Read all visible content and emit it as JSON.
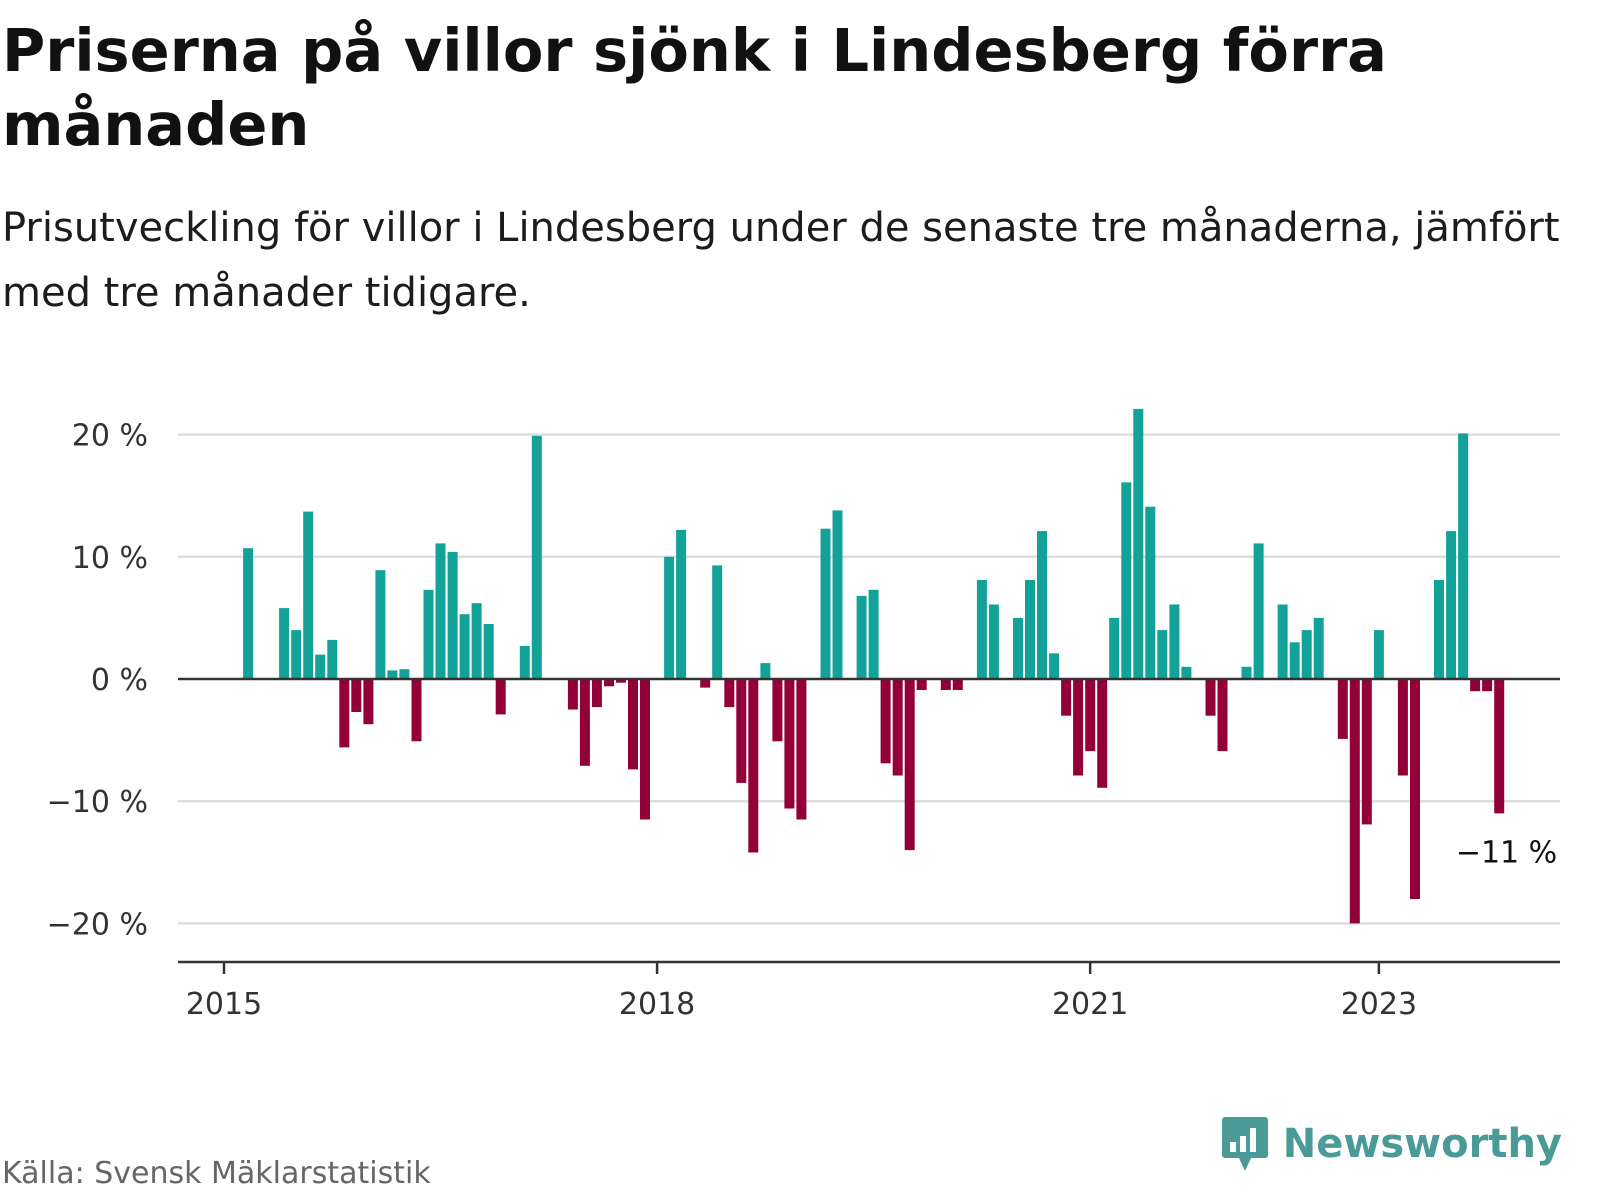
{
  "title": "Priserna på villor sjönk i Lindesberg förra månaden",
  "subtitle": "Prisutveckling för villor i Lindesberg under de senaste tre månaderna, jämfört med tre månader tidigare.",
  "source": "Källa: Svensk Mäklarstatistik",
  "brand": "Newsworthy",
  "colors": {
    "positive": "#13a298",
    "negative": "#930038",
    "grid": "#dddddd",
    "axis": "#333333",
    "brand": "#4a9a97"
  },
  "chart_data": {
    "type": "bar",
    "x_unit": "month",
    "y_unit": "%",
    "ylim": [
      -22,
      22
    ],
    "y_ticks": [
      {
        "value": 20,
        "label": "20 %"
      },
      {
        "value": 10,
        "label": "10 %"
      },
      {
        "value": 0,
        "label": "0 %"
      },
      {
        "value": -10,
        "label": "−10 %"
      },
      {
        "value": -20,
        "label": "−20 %"
      }
    ],
    "x_ticks": [
      {
        "date": "2015-01",
        "label": "2015"
      },
      {
        "date": "2018-01",
        "label": "2018"
      },
      {
        "date": "2021-01",
        "label": "2021"
      },
      {
        "date": "2023-01",
        "label": "2023"
      }
    ],
    "grid": true,
    "last_value_label": "−11 %",
    "categories": [
      "2015-01",
      "2015-02",
      "2015-03",
      "2015-04",
      "2015-05",
      "2015-06",
      "2015-07",
      "2015-08",
      "2015-09",
      "2015-10",
      "2015-11",
      "2015-12",
      "2016-01",
      "2016-02",
      "2016-03",
      "2016-04",
      "2016-05",
      "2016-06",
      "2016-07",
      "2016-08",
      "2016-09",
      "2016-10",
      "2016-11",
      "2016-12",
      "2017-01",
      "2017-02",
      "2017-03",
      "2017-04",
      "2017-05",
      "2017-06",
      "2017-07",
      "2017-08",
      "2017-09",
      "2017-10",
      "2017-11",
      "2017-12",
      "2018-01",
      "2018-02",
      "2018-03",
      "2018-04",
      "2018-05",
      "2018-06",
      "2018-07",
      "2018-08",
      "2018-09",
      "2018-10",
      "2018-11",
      "2018-12",
      "2019-01",
      "2019-02",
      "2019-03",
      "2019-04",
      "2019-05",
      "2019-06",
      "2019-07",
      "2019-08",
      "2019-09",
      "2019-10",
      "2019-11",
      "2019-12",
      "2020-01",
      "2020-02",
      "2020-03",
      "2020-04",
      "2020-05",
      "2020-06",
      "2020-07",
      "2020-08",
      "2020-09",
      "2020-10",
      "2020-11",
      "2020-12",
      "2021-01",
      "2021-02",
      "2021-03",
      "2021-04",
      "2021-05",
      "2021-06",
      "2021-07",
      "2021-08",
      "2021-09",
      "2021-10",
      "2021-11",
      "2021-12",
      "2022-01",
      "2022-02",
      "2022-03",
      "2022-04",
      "2022-05",
      "2022-06",
      "2022-07",
      "2022-08",
      "2022-09",
      "2022-10",
      "2022-11",
      "2022-12",
      "2023-01",
      "2023-02",
      "2023-03",
      "2023-04",
      "2023-05",
      "2023-06",
      "2023-07",
      "2023-08",
      "2023-09",
      "2023-10",
      "2023-11",
      "2023-12"
    ],
    "values": [
      null,
      null,
      10.7,
      null,
      null,
      5.8,
      4.0,
      13.7,
      2.0,
      3.2,
      -5.6,
      -2.7,
      -3.7,
      8.9,
      0.7,
      0.8,
      -5.1,
      7.3,
      11.1,
      10.4,
      5.3,
      6.2,
      4.5,
      -2.9,
      null,
      2.7,
      19.9,
      null,
      null,
      -2.5,
      -7.1,
      -2.3,
      -0.6,
      -0.3,
      -7.4,
      -11.5,
      null,
      10.0,
      12.2,
      null,
      -0.7,
      9.3,
      -2.3,
      -8.5,
      -14.2,
      1.3,
      -5.1,
      -10.6,
      -11.5,
      null,
      12.3,
      13.8,
      null,
      6.8,
      7.3,
      -6.9,
      -7.9,
      -14.0,
      -0.9,
      null,
      -0.9,
      -0.9,
      null,
      8.1,
      6.1,
      null,
      5.0,
      8.1,
      12.1,
      2.1,
      -3.0,
      -7.9,
      -5.9,
      -8.9,
      5.0,
      16.1,
      22.1,
      14.1,
      4.0,
      6.1,
      1.0,
      null,
      -3.0,
      -5.9,
      null,
      1.0,
      11.1,
      null,
      6.1,
      3.0,
      4.0,
      5.0,
      null,
      -4.9,
      -20.0,
      -11.9,
      4.0,
      null,
      -7.9,
      -18.0,
      null,
      8.1,
      12.1,
      20.1,
      -1.0,
      -1.0,
      -11.0,
      null
    ]
  }
}
